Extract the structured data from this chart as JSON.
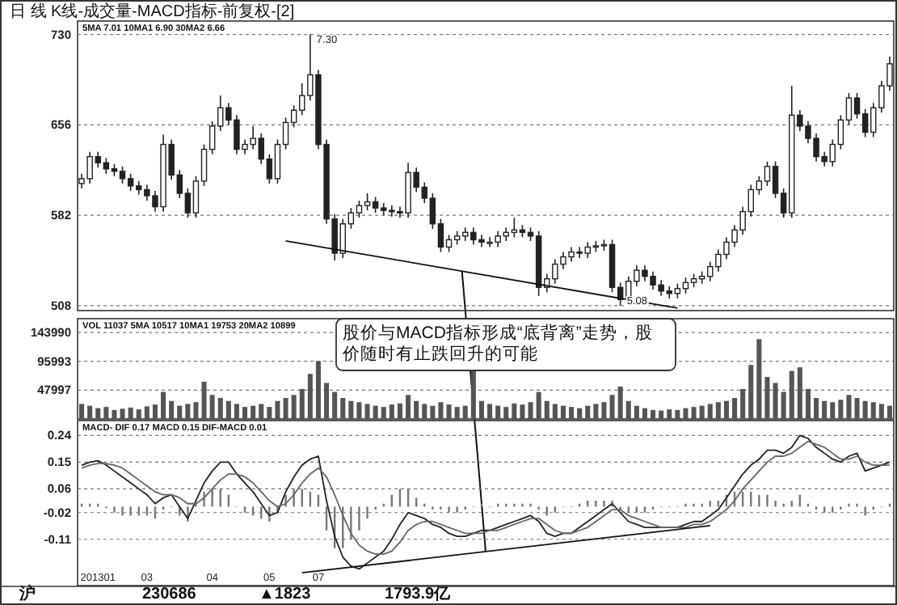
{
  "chart_data": [
    {
      "type": "candlestick",
      "title": "日 线 K线-成交量-MACD指标-前复权-[2]",
      "subtitle": "5MA 7.01  10MA1 6.90  30MA2 6.66",
      "color": "#222222",
      "ylim": [
        504,
        741
      ],
      "yticks": [
        508,
        582,
        656,
        730
      ],
      "grid": "y",
      "tick_labels": "y",
      "categories": [
        null,
        null,
        null,
        null,
        null,
        null,
        null,
        null,
        null,
        null,
        null,
        null,
        null,
        null,
        null,
        null,
        null,
        null,
        null,
        null,
        null,
        null,
        null,
        null,
        null,
        null,
        null,
        null,
        null,
        null,
        null,
        null,
        null,
        null,
        null,
        null,
        null,
        null,
        null,
        null,
        null,
        null,
        null,
        null,
        null,
        null,
        null,
        null,
        null,
        null,
        null,
        null,
        null,
        null,
        null,
        null,
        null,
        null,
        null,
        null,
        null,
        null,
        null,
        null,
        null,
        null,
        null,
        null,
        null,
        null,
        null,
        null,
        null,
        null,
        null,
        null,
        null,
        null,
        null,
        null,
        null,
        null,
        null,
        null,
        null,
        null,
        null,
        null,
        null,
        null,
        null,
        null,
        null,
        null,
        null,
        null,
        null,
        null,
        null,
        null
      ],
      "ohlc": [
        [
          608,
          616,
          604,
          612
        ],
        [
          612,
          634,
          608,
          630
        ],
        [
          630,
          634,
          621,
          625
        ],
        [
          625,
          629,
          616,
          620
        ],
        [
          620,
          624,
          614,
          618
        ],
        [
          618,
          622,
          608,
          612
        ],
        [
          612,
          616,
          602,
          606
        ],
        [
          606,
          610,
          599,
          603
        ],
        [
          603,
          607,
          594,
          598
        ],
        [
          598,
          602,
          585,
          589
        ],
        [
          589,
          648,
          585,
          640
        ],
        [
          640,
          644,
          611,
          615
        ],
        [
          615,
          619,
          596,
          600
        ],
        [
          600,
          604,
          580,
          584
        ],
        [
          584,
          614,
          580,
          610
        ],
        [
          610,
          640,
          606,
          636
        ],
        [
          636,
          659,
          632,
          655
        ],
        [
          655,
          680,
          651,
          670
        ],
        [
          670,
          674,
          656,
          660
        ],
        [
          660,
          664,
          632,
          636
        ],
        [
          636,
          644,
          632,
          640
        ],
        [
          640,
          655,
          636,
          645
        ],
        [
          645,
          649,
          624,
          628
        ],
        [
          628,
          632,
          608,
          612
        ],
        [
          612,
          644,
          608,
          640
        ],
        [
          640,
          662,
          636,
          658
        ],
        [
          658,
          672,
          654,
          668
        ],
        [
          668,
          690,
          664,
          680
        ],
        [
          680,
          730,
          676,
          697
        ],
        [
          697,
          701,
          636,
          640
        ],
        [
          640,
          644,
          575,
          579
        ],
        [
          579,
          583,
          545,
          551
        ],
        [
          551,
          579,
          547,
          575
        ],
        [
          575,
          588,
          571,
          584
        ],
        [
          584,
          594,
          580,
          590
        ],
        [
          590,
          600,
          586,
          593
        ],
        [
          593,
          597,
          584,
          588
        ],
        [
          588,
          592,
          582,
          586
        ],
        [
          586,
          590,
          581,
          585
        ],
        [
          585,
          589,
          580,
          584
        ],
        [
          584,
          625,
          580,
          617
        ],
        [
          617,
          621,
          601,
          605
        ],
        [
          605,
          609,
          592,
          596
        ],
        [
          596,
          600,
          571,
          575
        ],
        [
          575,
          579,
          552,
          556
        ],
        [
          556,
          566,
          552,
          562
        ],
        [
          562,
          569,
          558,
          565
        ],
        [
          565,
          572,
          561,
          568
        ],
        [
          568,
          572,
          558,
          562
        ],
        [
          562,
          566,
          556,
          560
        ],
        [
          560,
          564,
          556,
          560
        ],
        [
          560,
          569,
          556,
          565
        ],
        [
          565,
          572,
          561,
          568
        ],
        [
          568,
          580,
          564,
          570
        ],
        [
          570,
          574,
          564,
          568
        ],
        [
          568,
          572,
          561,
          565
        ],
        [
          565,
          569,
          516,
          523
        ],
        [
          523,
          534,
          519,
          530
        ],
        [
          530,
          546,
          526,
          542
        ],
        [
          542,
          552,
          538,
          548
        ],
        [
          548,
          556,
          544,
          552
        ],
        [
          552,
          556,
          547,
          551
        ],
        [
          551,
          560,
          547,
          556
        ],
        [
          556,
          561,
          552,
          557
        ],
        [
          557,
          562,
          553,
          558
        ],
        [
          558,
          562,
          519,
          523
        ],
        [
          523,
          527,
          508,
          513
        ],
        [
          513,
          532,
          509,
          528
        ],
        [
          528,
          541,
          524,
          537
        ],
        [
          537,
          541,
          528,
          532
        ],
        [
          532,
          536,
          521,
          525
        ],
        [
          525,
          529,
          516,
          520
        ],
        [
          520,
          524,
          514,
          518
        ],
        [
          518,
          526,
          514,
          522
        ],
        [
          522,
          531,
          518,
          527
        ],
        [
          527,
          534,
          523,
          530
        ],
        [
          530,
          536,
          526,
          532
        ],
        [
          532,
          544,
          528,
          540
        ],
        [
          540,
          554,
          536,
          550
        ],
        [
          550,
          564,
          546,
          560
        ],
        [
          560,
          574,
          556,
          570
        ],
        [
          570,
          589,
          566,
          585
        ],
        [
          585,
          607,
          581,
          603
        ],
        [
          603,
          614,
          599,
          610
        ],
        [
          610,
          626,
          606,
          622
        ],
        [
          622,
          626,
          596,
          600
        ],
        [
          600,
          604,
          580,
          584
        ],
        [
          584,
          688,
          580,
          664
        ],
        [
          664,
          668,
          651,
          655
        ],
        [
          655,
          659,
          641,
          645
        ],
        [
          645,
          649,
          626,
          630
        ],
        [
          630,
          634,
          622,
          626
        ],
        [
          626,
          644,
          622,
          640
        ],
        [
          640,
          664,
          636,
          660
        ],
        [
          660,
          682,
          656,
          678
        ],
        [
          678,
          682,
          661,
          665
        ],
        [
          665,
          669,
          646,
          650
        ],
        [
          650,
          674,
          646,
          670
        ],
        [
          670,
          692,
          666,
          688
        ],
        [
          688,
          712,
          684,
          706
        ]
      ],
      "series": [
        {
          "type": "line",
          "color": "#111111",
          "values": [
            null,
            null,
            null,
            null,
            null,
            null,
            null,
            null,
            null,
            null,
            null,
            null,
            null,
            null,
            null,
            null,
            null,
            null,
            null,
            null,
            null,
            null,
            null,
            null,
            null,
            561,
            null,
            null,
            null,
            null,
            null,
            null,
            null,
            null,
            null,
            null,
            null,
            null,
            null,
            null,
            null,
            null,
            null,
            null,
            null,
            null,
            null,
            null,
            null,
            null,
            null,
            null,
            null,
            null,
            null,
            null,
            null,
            null,
            null,
            null,
            null,
            null,
            null,
            null,
            null,
            null,
            null,
            null,
            null,
            null,
            null,
            null,
            null,
            506,
            null,
            null,
            null,
            null,
            null,
            null,
            null,
            null,
            null,
            null,
            null,
            null,
            null,
            null,
            null,
            null,
            null,
            null,
            null,
            null,
            null,
            null,
            null,
            null,
            null,
            null
          ]
        }
      ],
      "annotations": [
        "7.30",
        "5.08",
        "股价与MACD指标形成“底背离”走势，股价随时有止跌回升的可能"
      ]
    },
    {
      "type": "bar",
      "subtitle": "VOL 11037  5MA 10517  10MA1 19753  20MA2 10899",
      "color": "#555555",
      "ylim": [
        0,
        167000
      ],
      "yticks": [
        47997,
        95993,
        143990
      ],
      "grid": "y",
      "tick_labels": "y",
      "categories": [
        null,
        null,
        null,
        null,
        null,
        null,
        null,
        null,
        null,
        null,
        null,
        null,
        null,
        null,
        null,
        null,
        null,
        null,
        null,
        null,
        null,
        null,
        null,
        null,
        null,
        null,
        null,
        null,
        null,
        null,
        null,
        null,
        null,
        null,
        null,
        null,
        null,
        null,
        null,
        null,
        null,
        null,
        null,
        null,
        null,
        null,
        null,
        null,
        null,
        null,
        null,
        null,
        null,
        null,
        null,
        null,
        null,
        null,
        null,
        null,
        null,
        null,
        null,
        null,
        null,
        null,
        null,
        null,
        null,
        null,
        null,
        null,
        null,
        null,
        null,
        null,
        null,
        null,
        null,
        null,
        null,
        null,
        null,
        null,
        null,
        null,
        null,
        null,
        null,
        null,
        null,
        null,
        null,
        null,
        null,
        null,
        null,
        null,
        null,
        null
      ],
      "values": [
        25000,
        22000,
        18000,
        20000,
        15000,
        17000,
        19000,
        16000,
        21000,
        24000,
        45000,
        30000,
        22000,
        25000,
        28000,
        62000,
        40000,
        35000,
        30000,
        25000,
        20000,
        22000,
        25000,
        20000,
        30000,
        35000,
        40000,
        50000,
        75000,
        96000,
        60000,
        45000,
        35000,
        30000,
        28000,
        25000,
        22000,
        20000,
        24000,
        26000,
        40000,
        30000,
        25000,
        22000,
        28000,
        24000,
        20000,
        22000,
        80000,
        30000,
        25000,
        22000,
        20000,
        26000,
        24000,
        28000,
        45000,
        30000,
        25000,
        22000,
        20000,
        18000,
        22000,
        25000,
        28000,
        40000,
        54000,
        30000,
        22000,
        18000,
        15000,
        14000,
        16000,
        15000,
        18000,
        20000,
        22000,
        25000,
        28000,
        30000,
        35000,
        50000,
        90000,
        133000,
        70000,
        60000,
        45000,
        80000,
        86000,
        50000,
        35000,
        30000,
        28000,
        32000,
        40000,
        35000,
        30000,
        28000,
        25000,
        22000
      ]
    },
    {
      "type": "line",
      "subtitle": "MACD- DIF 0.17  MACD 0.15  DIF-MACD 0.01",
      "ylim": [
        -0.266,
        0.29
      ],
      "yticks": [
        0.24,
        0.15,
        0.06,
        -0.02,
        -0.11
      ],
      "grid": "y",
      "categories": [
        null,
        null,
        "201301",
        null,
        null,
        null,
        null,
        null,
        "03",
        null,
        null,
        null,
        null,
        null,
        null,
        null,
        "04",
        null,
        null,
        null,
        null,
        null,
        null,
        "05",
        null,
        null,
        null,
        null,
        null,
        "07",
        null,
        null,
        null,
        null,
        null,
        null,
        null,
        null,
        null,
        null,
        null,
        null,
        null,
        null,
        null,
        null,
        null,
        null,
        null,
        null,
        null,
        null,
        null,
        null,
        null,
        null,
        null,
        null,
        null,
        null,
        null,
        null,
        null,
        null,
        null,
        null,
        null,
        null,
        null,
        null,
        null,
        null,
        null,
        null,
        null,
        null,
        null,
        null,
        null,
        null,
        null,
        null,
        null,
        null,
        null,
        null,
        null,
        null,
        null,
        null,
        null,
        null,
        null,
        null,
        null,
        null,
        null,
        null,
        null,
        null
      ],
      "series": [
        {
          "type": "bar",
          "color": "#777777",
          "values": [
            0.01,
            0.01,
            0.01,
            -0.005,
            -0.02,
            -0.03,
            -0.03,
            -0.03,
            -0.03,
            -0.04,
            -0.01,
            0,
            -0.03,
            -0.05,
            0.01,
            0.05,
            0.06,
            0.06,
            0.04,
            0,
            -0.02,
            -0.03,
            -0.04,
            -0.05,
            -0.02,
            0.04,
            0.06,
            0.06,
            0.05,
            0.04,
            -0.08,
            -0.14,
            -0.14,
            -0.11,
            -0.08,
            -0.04,
            -0.01,
            0.01,
            0.04,
            0.06,
            0.06,
            0.03,
            0.01,
            -0.01,
            -0.01,
            -0.02,
            -0.02,
            -0.01,
            0,
            0.01,
            0,
            0.01,
            0.01,
            0.01,
            0.01,
            0.01,
            -0.01,
            -0.03,
            -0.02,
            0,
            0,
            0.01,
            0.02,
            0.02,
            0.02,
            0.02,
            -0.01,
            -0.02,
            -0.02,
            -0.02,
            -0.01,
            0,
            0,
            0,
            0.01,
            0.01,
            0.01,
            0.02,
            0.02,
            0.04,
            0.05,
            0.05,
            0.05,
            0.04,
            0.04,
            0.02,
            0.01,
            0.02,
            0.04,
            0.01,
            -0.01,
            -0.02,
            -0.02,
            -0.01,
            0.01,
            0.01,
            -0.03,
            -0.01,
            0,
            0.01
          ]
        },
        {
          "type": "line",
          "color": "#222222",
          "values": [
            0.14,
            0.15,
            0.155,
            0.14,
            0.12,
            0.1,
            0.08,
            0.06,
            0.04,
            0.01,
            0.03,
            0.04,
            0.0,
            -0.04,
            0.02,
            0.08,
            0.12,
            0.15,
            0.15,
            0.11,
            0.08,
            0.05,
            0.01,
            -0.03,
            -0.02,
            0.05,
            0.1,
            0.14,
            0.16,
            0.17,
            0.02,
            -0.1,
            -0.17,
            -0.2,
            -0.21,
            -0.19,
            -0.17,
            -0.15,
            -0.11,
            -0.06,
            -0.02,
            -0.03,
            -0.04,
            -0.06,
            -0.07,
            -0.09,
            -0.1,
            -0.1,
            -0.09,
            -0.08,
            -0.08,
            -0.07,
            -0.06,
            -0.05,
            -0.04,
            -0.03,
            -0.05,
            -0.09,
            -0.1,
            -0.09,
            -0.09,
            -0.07,
            -0.05,
            -0.03,
            -0.01,
            0.01,
            -0.02,
            -0.05,
            -0.06,
            -0.07,
            -0.07,
            -0.07,
            -0.07,
            -0.07,
            -0.06,
            -0.05,
            -0.05,
            -0.03,
            -0.01,
            0.03,
            0.07,
            0.11,
            0.14,
            0.16,
            0.19,
            0.19,
            0.18,
            0.2,
            0.24,
            0.23,
            0.2,
            0.18,
            0.16,
            0.15,
            0.17,
            0.18,
            0.12,
            0.13,
            0.14,
            0.15
          ]
        },
        {
          "type": "line",
          "color": "#666666",
          "values": [
            0.13,
            0.14,
            0.145,
            0.145,
            0.14,
            0.13,
            0.11,
            0.09,
            0.07,
            0.05,
            0.04,
            0.04,
            0.03,
            0.01,
            0.01,
            0.03,
            0.06,
            0.09,
            0.11,
            0.11,
            0.1,
            0.08,
            0.05,
            0.02,
            0.0,
            0.01,
            0.04,
            0.08,
            0.11,
            0.13,
            0.1,
            0.04,
            -0.03,
            -0.09,
            -0.13,
            -0.15,
            -0.16,
            -0.16,
            -0.15,
            -0.12,
            -0.08,
            -0.06,
            -0.05,
            -0.05,
            -0.06,
            -0.07,
            -0.08,
            -0.09,
            -0.09,
            -0.09,
            -0.08,
            -0.08,
            -0.07,
            -0.06,
            -0.05,
            -0.04,
            -0.04,
            -0.06,
            -0.08,
            -0.09,
            -0.09,
            -0.08,
            -0.07,
            -0.05,
            -0.03,
            -0.01,
            -0.01,
            -0.03,
            -0.04,
            -0.05,
            -0.06,
            -0.07,
            -0.07,
            -0.07,
            -0.07,
            -0.06,
            -0.06,
            -0.05,
            -0.03,
            -0.01,
            0.02,
            0.06,
            0.09,
            0.12,
            0.15,
            0.17,
            0.17,
            0.18,
            0.2,
            0.22,
            0.21,
            0.2,
            0.18,
            0.16,
            0.16,
            0.17,
            0.15,
            0.14,
            0.14,
            0.14
          ]
        },
        {
          "type": "line",
          "color": "#111111",
          "values": [
            null,
            null,
            null,
            null,
            null,
            null,
            null,
            null,
            null,
            null,
            null,
            null,
            null,
            null,
            null,
            null,
            null,
            null,
            null,
            null,
            null,
            null,
            null,
            null,
            null,
            null,
            null,
            -0.223,
            null,
            null,
            null,
            null,
            null,
            null,
            null,
            null,
            null,
            null,
            null,
            null,
            null,
            null,
            null,
            null,
            null,
            null,
            null,
            null,
            null,
            null,
            null,
            null,
            null,
            null,
            null,
            null,
            null,
            null,
            null,
            null,
            null,
            null,
            null,
            null,
            null,
            null,
            null,
            null,
            null,
            null,
            null,
            null,
            null,
            null,
            null,
            null,
            null,
            -0.064,
            null,
            null,
            null,
            null,
            null,
            null,
            null,
            null,
            null,
            null,
            null,
            null,
            null,
            null,
            null,
            null,
            null,
            null,
            null,
            null,
            null,
            null
          ]
        }
      ],
      "annotations": [
        "沪",
        "230686",
        "▲1823",
        "1793.9亿"
      ]
    }
  ]
}
